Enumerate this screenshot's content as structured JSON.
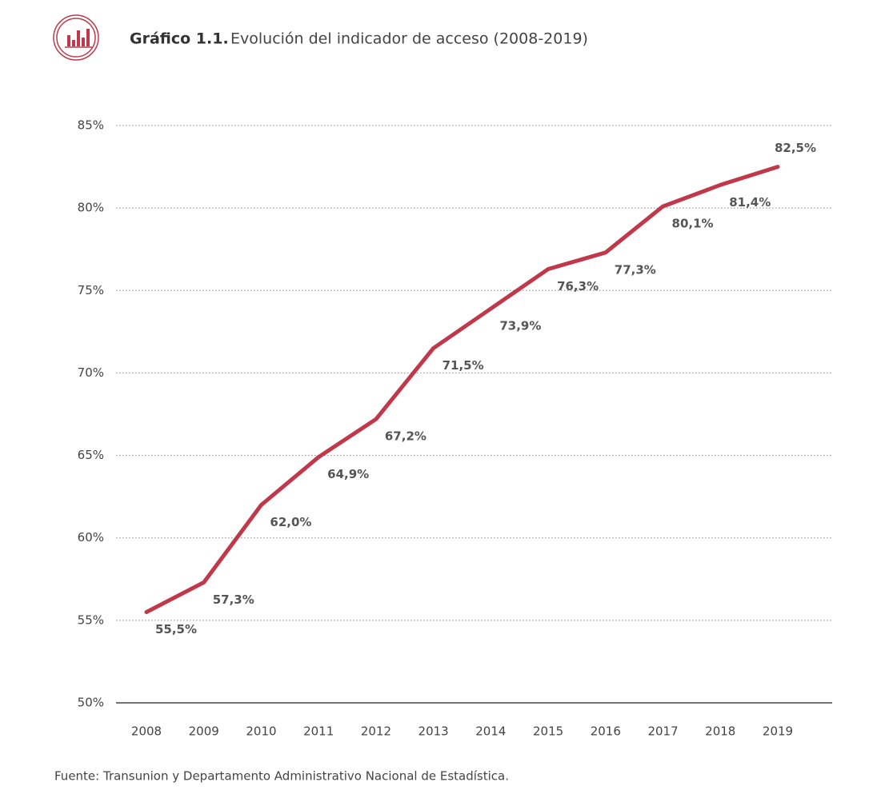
{
  "chart_data": {
    "type": "line",
    "title_label": "Gráfico 1.1.",
    "title": "Evolución del indicador de acceso (2008-2019)",
    "source": "Fuente: Transunion y Departamento Administrativo Nacional de Estadística.",
    "categories": [
      "2008",
      "2009",
      "2010",
      "2011",
      "2012",
      "2013",
      "2014",
      "2015",
      "2016",
      "2017",
      "2018",
      "2019"
    ],
    "series": [
      {
        "name": "Indicador de acceso",
        "color": "#c0394a",
        "values": [
          55.5,
          57.3,
          62.0,
          64.9,
          67.2,
          71.5,
          73.9,
          76.3,
          77.3,
          80.1,
          81.4,
          82.5
        ],
        "value_labels": [
          "55,5%",
          "57,3%",
          "62,0%",
          "64,9%",
          "67,2%",
          "71,5%",
          "73,9%",
          "76,3%",
          "77,3%",
          "80,1%",
          "81,4%",
          "82,5%"
        ]
      }
    ],
    "ylim": [
      50,
      85
    ],
    "yticks": [
      {
        "value": 50,
        "label": "50%"
      },
      {
        "value": 55,
        "label": "55%"
      },
      {
        "value": 60,
        "label": "60%"
      },
      {
        "value": 65,
        "label": "65%"
      },
      {
        "value": 70,
        "label": "70%"
      },
      {
        "value": 75,
        "label": "75%"
      },
      {
        "value": 80,
        "label": "80%"
      },
      {
        "value": 85,
        "label": "85%"
      }
    ],
    "grid": true
  }
}
